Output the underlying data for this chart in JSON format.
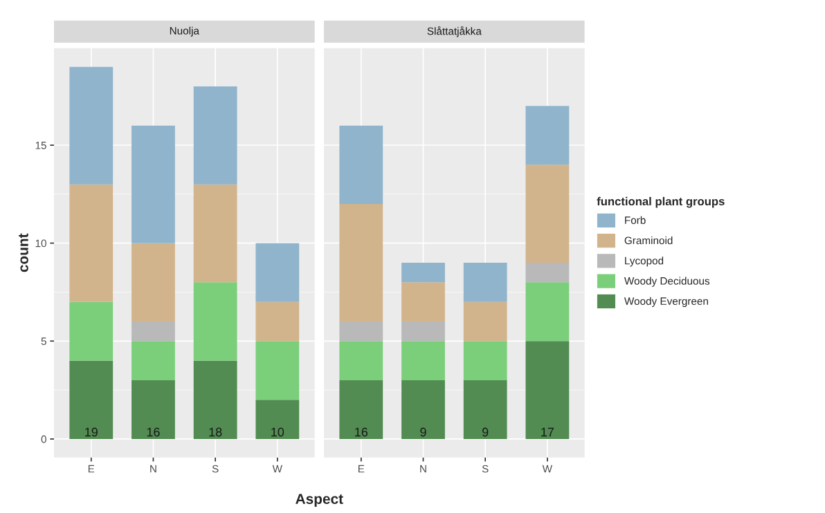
{
  "chart_data": [
    {
      "type": "bar",
      "title": "Nuolja",
      "xlabel": "Aspect",
      "ylabel": "count",
      "categories": [
        "E",
        "N",
        "S",
        "W"
      ],
      "stacked": true,
      "ylim": [
        -0.95,
        19.95
      ],
      "yticks": [
        0,
        5,
        10,
        15
      ],
      "grid": true,
      "series": [
        {
          "color": "#528c52",
          "values": [
            4,
            3,
            4,
            2
          ]
        },
        {
          "color": "#7bcf7b",
          "values": [
            3,
            2,
            4,
            3
          ]
        },
        {
          "color": "#b9b9b9",
          "values": [
            0,
            1,
            0,
            0
          ]
        },
        {
          "color": "#d2b48c",
          "values": [
            6,
            4,
            5,
            2
          ]
        },
        {
          "color": "#8fb4cc",
          "values": [
            6,
            6,
            5,
            3
          ]
        }
      ],
      "totals": [
        "19",
        "16",
        "18",
        "10"
      ]
    },
    {
      "type": "bar",
      "title": "Slåttatjåkka",
      "categories": [
        "E",
        "N",
        "S",
        "W"
      ],
      "stacked": true,
      "ylim": [
        -0.95,
        19.95
      ],
      "yticks": [
        0,
        5,
        10,
        15
      ],
      "tick_labels": "x",
      "grid": true,
      "legend": "right",
      "legend_title": "functional plant groups",
      "series": [
        {
          "name": "Woody Evergreen",
          "color": "#528c52",
          "values": [
            3,
            3,
            3,
            5
          ]
        },
        {
          "name": "Woody Deciduous",
          "color": "#7bcf7b",
          "values": [
            2,
            2,
            2,
            3
          ]
        },
        {
          "name": "Lycopod",
          "color": "#b9b9b9",
          "values": [
            1,
            1,
            0,
            1
          ]
        },
        {
          "name": "Graminoid",
          "color": "#d2b48c",
          "values": [
            6,
            2,
            2,
            5
          ]
        },
        {
          "name": "Forb",
          "color": "#8fb4cc",
          "values": [
            4,
            1,
            2,
            3
          ]
        }
      ],
      "totals": [
        "16",
        "9",
        "9",
        "17"
      ]
    }
  ]
}
